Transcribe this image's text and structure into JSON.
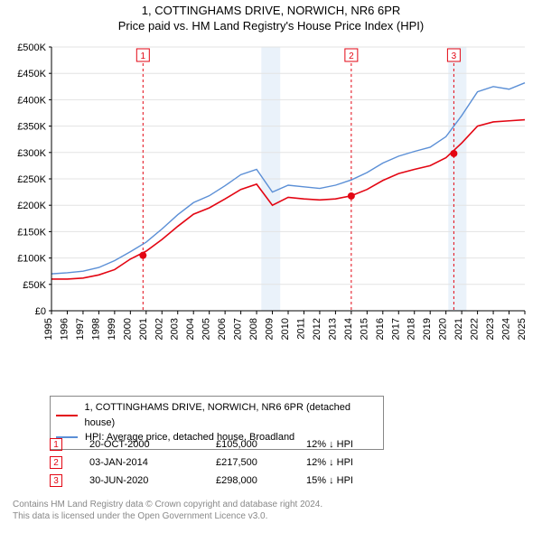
{
  "title_line1": "1, COTTINGHAMS DRIVE, NORWICH, NR6 6PR",
  "title_line2": "Price paid vs. HM Land Registry's House Price Index (HPI)",
  "chart": {
    "type": "line",
    "background_color": "#ffffff",
    "grid_color": "#e3e3e3",
    "axis_color": "#000000",
    "x": {
      "min": 1995,
      "max": 2025,
      "tick_step": 1,
      "label_fontsize": 11,
      "label_rotation": -90
    },
    "y": {
      "min": 0,
      "max": 500000,
      "tick_step": 50000,
      "tick_labels": [
        "£0",
        "£50K",
        "£100K",
        "£150K",
        "£200K",
        "£250K",
        "£300K",
        "£350K",
        "£400K",
        "£450K",
        "£500K"
      ],
      "label_fontsize": 11
    },
    "shaded_bands": [
      {
        "x_start": 2008.3,
        "x_end": 2009.5,
        "color": "#eaf2fa"
      },
      {
        "x_start": 2020.15,
        "x_end": 2021.3,
        "color": "#eaf2fa"
      }
    ],
    "series": [
      {
        "name": "price_paid",
        "label": "1, COTTINGHAMS DRIVE, NORWICH, NR6 6PR (detached house)",
        "color": "#e30613",
        "line_width": 1.6,
        "x": [
          1995,
          1996,
          1997,
          1998,
          1999,
          2000,
          2001,
          2002,
          2003,
          2004,
          2005,
          2006,
          2007,
          2008,
          2009,
          2010,
          2011,
          2012,
          2013,
          2014,
          2015,
          2016,
          2017,
          2018,
          2019,
          2020,
          2021,
          2022,
          2023,
          2024,
          2025
        ],
        "y": [
          60000,
          60000,
          62000,
          68000,
          78000,
          98000,
          113000,
          135000,
          160000,
          183000,
          195000,
          212000,
          230000,
          240000,
          200000,
          215000,
          212000,
          210000,
          212000,
          218000,
          230000,
          247000,
          260000,
          268000,
          275000,
          290000,
          318000,
          350000,
          358000,
          360000,
          362000
        ]
      },
      {
        "name": "hpi",
        "label": "HPI: Average price, detached house, Broadland",
        "color": "#5b8fd6",
        "line_width": 1.4,
        "x": [
          1995,
          1996,
          1997,
          1998,
          1999,
          2000,
          2001,
          2002,
          2003,
          2004,
          2005,
          2006,
          2007,
          2008,
          2009,
          2010,
          2011,
          2012,
          2013,
          2014,
          2015,
          2016,
          2017,
          2018,
          2019,
          2020,
          2021,
          2022,
          2023,
          2024,
          2025
        ],
        "y": [
          70000,
          72000,
          75000,
          82000,
          95000,
          112000,
          130000,
          155000,
          182000,
          205000,
          218000,
          237000,
          258000,
          268000,
          225000,
          238000,
          235000,
          232000,
          238000,
          248000,
          262000,
          280000,
          293000,
          302000,
          310000,
          330000,
          370000,
          415000,
          425000,
          420000,
          432000
        ]
      }
    ],
    "point_markers": [
      {
        "id": "1",
        "x": 2000.8,
        "y": 105000,
        "color": "#e30613"
      },
      {
        "id": "2",
        "x": 2014.0,
        "y": 217500,
        "color": "#e30613"
      },
      {
        "id": "3",
        "x": 2020.5,
        "y": 298000,
        "color": "#e30613"
      }
    ],
    "event_lines": [
      {
        "id": "1",
        "x": 2000.8,
        "color": "#e30613",
        "dash": "3,3",
        "label_box_color": "#e30613"
      },
      {
        "id": "2",
        "x": 2014.0,
        "color": "#e30613",
        "dash": "3,3",
        "label_box_color": "#e30613"
      },
      {
        "id": "3",
        "x": 2020.5,
        "color": "#e30613",
        "dash": "3,3",
        "label_box_color": "#e30613"
      }
    ]
  },
  "legend": {
    "series1_color": "#e30613",
    "series1_label": "1, COTTINGHAMS DRIVE, NORWICH, NR6 6PR (detached house)",
    "series2_color": "#5b8fd6",
    "series2_label": "HPI: Average price, detached house, Broadland"
  },
  "markers_table": [
    {
      "num": "1",
      "color": "#e30613",
      "date": "20-OCT-2000",
      "price": "£105,000",
      "hpi_delta": "12% ↓ HPI"
    },
    {
      "num": "2",
      "color": "#e30613",
      "date": "03-JAN-2014",
      "price": "£217,500",
      "hpi_delta": "12% ↓ HPI"
    },
    {
      "num": "3",
      "color": "#e30613",
      "date": "30-JUN-2020",
      "price": "£298,000",
      "hpi_delta": "15% ↓ HPI"
    }
  ],
  "attribution": {
    "line1": "Contains HM Land Registry data © Crown copyright and database right 2024.",
    "line2": "This data is licensed under the Open Government Licence v3.0."
  }
}
